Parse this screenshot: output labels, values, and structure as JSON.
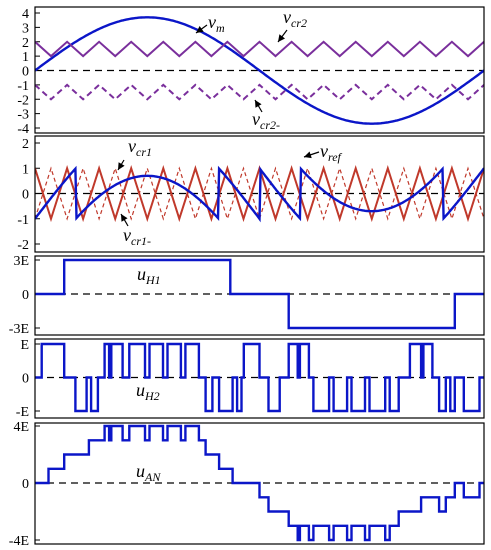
{
  "chart_data": [
    {
      "type": "line",
      "title": "",
      "ylim": [
        -4,
        4
      ],
      "yticks": [
        "4",
        "3",
        "2",
        "1",
        "0",
        "-1",
        "-2",
        "-3",
        "-4"
      ],
      "series": [
        {
          "name": "v_m",
          "label": "v",
          "sub": "m",
          "color": "#0b16c8",
          "kind": "sine",
          "amplitude": 3.7,
          "cycles": 1
        },
        {
          "name": "v_cr2",
          "label": "v",
          "sub": "cr2",
          "color": "#7a2f9c",
          "kind": "triangle",
          "min": 1,
          "max": 2,
          "cycles": 14
        },
        {
          "name": "v_cr2-",
          "label": "v",
          "sub": "cr2-",
          "color": "#7a2f9c",
          "kind": "triangle-dashed",
          "min": -2,
          "max": -1,
          "cycles": 14
        }
      ]
    },
    {
      "type": "line",
      "ylim": [
        -2,
        2
      ],
      "yticks": [
        "2",
        "1",
        "0",
        "-1",
        "-2"
      ],
      "series": [
        {
          "name": "v_cr1",
          "label": "v",
          "sub": "cr1",
          "color": "#c0392b",
          "kind": "triangle",
          "min": -1,
          "max": 1,
          "cycles": 14
        },
        {
          "name": "v_cr1-",
          "label": "v",
          "sub": "cr1-",
          "color": "#c0392b",
          "kind": "triangle-dashed",
          "min": -1,
          "max": 1,
          "cycles": 14
        },
        {
          "name": "v_ref",
          "label": "v",
          "sub": "ref",
          "color": "#0b16c8",
          "kind": "folded",
          "cycles": 1
        }
      ]
    },
    {
      "type": "line",
      "ylim": [
        -3,
        3
      ],
      "yticks": [
        "3E",
        "0",
        "-3E"
      ],
      "series": [
        {
          "name": "u_H1",
          "label": "u",
          "sub": "H1",
          "color": "#0b16c8",
          "kind": "step",
          "steps": [
            [
              0,
              0
            ],
            [
              0.065,
              3
            ],
            [
              0.435,
              0
            ],
            [
              0.565,
              -3
            ],
            [
              0.935,
              0
            ],
            [
              1,
              0
            ]
          ]
        }
      ]
    },
    {
      "type": "line",
      "ylim": [
        -1,
        1
      ],
      "yticks": [
        "E",
        "0",
        "-E"
      ],
      "series": [
        {
          "name": "u_H2",
          "label": "u",
          "sub": "H2",
          "color": "#0b16c8",
          "kind": "step",
          "steps": [
            [
              0,
              0
            ],
            [
              0.015,
              1
            ],
            [
              0.065,
              0
            ],
            [
              0.09,
              -1
            ],
            [
              0.115,
              0
            ],
            [
              0.125,
              -1
            ],
            [
              0.14,
              0
            ],
            [
              0.155,
              1
            ],
            [
              0.165,
              0
            ],
            [
              0.17,
              1
            ],
            [
              0.195,
              0
            ],
            [
              0.21,
              1
            ],
            [
              0.245,
              0
            ],
            [
              0.255,
              1
            ],
            [
              0.285,
              0
            ],
            [
              0.295,
              1
            ],
            [
              0.325,
              0
            ],
            [
              0.335,
              1
            ],
            [
              0.365,
              0
            ],
            [
              0.38,
              -1
            ],
            [
              0.395,
              0
            ],
            [
              0.41,
              -1
            ],
            [
              0.44,
              0
            ],
            [
              0.45,
              -1
            ],
            [
              0.46,
              0
            ],
            [
              0.465,
              1
            ],
            [
              0.5,
              0
            ],
            [
              0.52,
              -1
            ],
            [
              0.545,
              0
            ],
            [
              0.565,
              1
            ],
            [
              0.585,
              0
            ],
            [
              0.59,
              1
            ],
            [
              0.61,
              0
            ],
            [
              0.62,
              -1
            ],
            [
              0.655,
              0
            ],
            [
              0.665,
              -1
            ],
            [
              0.695,
              0
            ],
            [
              0.705,
              -1
            ],
            [
              0.735,
              0
            ],
            [
              0.745,
              -1
            ],
            [
              0.78,
              0
            ],
            [
              0.79,
              -1
            ],
            [
              0.81,
              0
            ],
            [
              0.835,
              1
            ],
            [
              0.86,
              0
            ],
            [
              0.865,
              1
            ],
            [
              0.885,
              0
            ],
            [
              0.9,
              -1
            ],
            [
              0.915,
              0
            ],
            [
              0.925,
              -1
            ],
            [
              0.935,
              0
            ],
            [
              0.955,
              -1
            ],
            [
              0.99,
              0
            ],
            [
              1,
              0
            ]
          ]
        }
      ]
    },
    {
      "type": "line",
      "ylim": [
        -4,
        4
      ],
      "yticks": [
        "4E",
        "0",
        "-4E"
      ],
      "series": [
        {
          "name": "u_AN",
          "label": "u",
          "sub": "AN",
          "color": "#0b16c8",
          "kind": "step",
          "steps": [
            [
              0,
              0
            ],
            [
              0.03,
              1
            ],
            [
              0.065,
              2
            ],
            [
              0.12,
              3
            ],
            [
              0.145,
              3
            ],
            [
              0.155,
              4
            ],
            [
              0.165,
              3
            ],
            [
              0.17,
              4
            ],
            [
              0.195,
              3
            ],
            [
              0.21,
              4
            ],
            [
              0.245,
              3
            ],
            [
              0.255,
              4
            ],
            [
              0.285,
              3
            ],
            [
              0.295,
              4
            ],
            [
              0.325,
              3
            ],
            [
              0.335,
              4
            ],
            [
              0.365,
              3
            ],
            [
              0.38,
              2
            ],
            [
              0.41,
              1
            ],
            [
              0.44,
              0
            ],
            [
              0.46,
              0
            ],
            [
              0.5,
              -1
            ],
            [
              0.52,
              -2
            ],
            [
              0.545,
              -2
            ],
            [
              0.565,
              -3
            ],
            [
              0.585,
              -4
            ],
            [
              0.59,
              -3
            ],
            [
              0.61,
              -4
            ],
            [
              0.62,
              -3
            ],
            [
              0.655,
              -4
            ],
            [
              0.665,
              -3
            ],
            [
              0.695,
              -4
            ],
            [
              0.705,
              -3
            ],
            [
              0.735,
              -4
            ],
            [
              0.745,
              -3
            ],
            [
              0.78,
              -4
            ],
            [
              0.79,
              -3
            ],
            [
              0.81,
              -2
            ],
            [
              0.86,
              -1
            ],
            [
              0.885,
              -1
            ],
            [
              0.9,
              -2
            ],
            [
              0.915,
              -1
            ],
            [
              0.935,
              0
            ],
            [
              0.955,
              -1
            ],
            [
              0.99,
              0
            ],
            [
              1,
              0
            ]
          ]
        }
      ]
    }
  ]
}
